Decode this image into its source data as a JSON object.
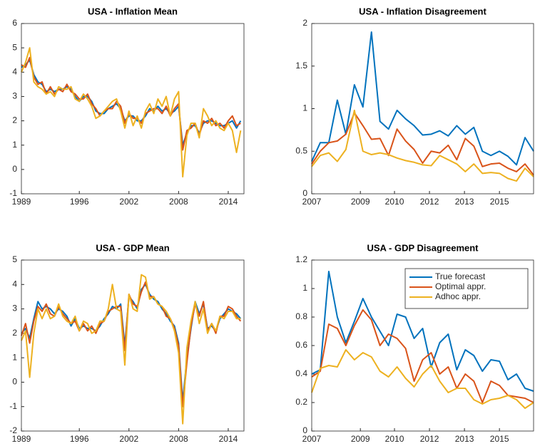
{
  "chart_data": [
    {
      "type": "line",
      "title": "USA - Inflation Mean",
      "x": [
        1989,
        1989.5,
        1990,
        1990.5,
        1991,
        1991.5,
        1992,
        1992.5,
        1993,
        1993.5,
        1994,
        1994.5,
        1995,
        1995.5,
        1996,
        1996.5,
        1997,
        1997.5,
        1998,
        1998.5,
        1999,
        1999.5,
        2000,
        2000.5,
        2001,
        2001.5,
        2002,
        2002.5,
        2003,
        2003.5,
        2004,
        2004.5,
        2005,
        2005.5,
        2006,
        2006.5,
        2007,
        2007.5,
        2008,
        2008.5,
        2009,
        2009.5,
        2010,
        2010.5,
        2011,
        2011.5,
        2012,
        2012.5,
        2013,
        2013.5,
        2014,
        2014.5,
        2015,
        2015.5
      ],
      "series": [
        {
          "color": "#0072BD",
          "values": [
            4.2,
            4.3,
            4.5,
            3.9,
            3.6,
            3.5,
            3.2,
            3.3,
            3.2,
            3.3,
            3.3,
            3.4,
            3.3,
            3.0,
            2.8,
            3.0,
            3.0,
            2.8,
            2.4,
            2.3,
            2.3,
            2.5,
            2.6,
            2.7,
            2.5,
            2.0,
            2.2,
            2.2,
            2.0,
            2.0,
            2.2,
            2.5,
            2.4,
            2.6,
            2.4,
            2.5,
            2.3,
            2.4,
            2.6,
            1.0,
            1.5,
            1.8,
            1.8,
            1.5,
            1.9,
            2.0,
            2.0,
            1.9,
            1.8,
            1.8,
            1.9,
            2.0,
            1.7,
            2.0
          ]
        },
        {
          "color": "#D95319",
          "values": [
            4.3,
            4.2,
            4.6,
            3.8,
            3.5,
            3.6,
            3.1,
            3.4,
            3.1,
            3.3,
            3.2,
            3.5,
            3.2,
            3.1,
            2.9,
            2.9,
            3.1,
            2.7,
            2.5,
            2.2,
            2.4,
            2.5,
            2.5,
            2.8,
            2.6,
            1.9,
            2.3,
            2.1,
            2.1,
            1.9,
            2.3,
            2.4,
            2.5,
            2.5,
            2.3,
            2.6,
            2.2,
            2.5,
            2.7,
            0.8,
            1.6,
            1.7,
            1.9,
            1.4,
            2.0,
            1.9,
            2.1,
            1.8,
            1.9,
            1.7,
            2.0,
            2.2,
            1.8,
            1.9
          ]
        },
        {
          "color": "#EDB120",
          "values": [
            4.0,
            4.4,
            5.0,
            3.6,
            3.4,
            3.3,
            3.1,
            3.2,
            3.0,
            3.4,
            3.3,
            3.3,
            3.4,
            2.9,
            2.8,
            3.1,
            2.9,
            2.6,
            2.1,
            2.2,
            2.4,
            2.6,
            2.8,
            2.9,
            2.4,
            1.7,
            2.4,
            1.8,
            2.2,
            1.7,
            2.4,
            2.7,
            2.3,
            2.9,
            2.6,
            3.0,
            2.2,
            2.9,
            3.2,
            -0.3,
            1.4,
            1.9,
            1.9,
            1.3,
            2.5,
            2.2,
            1.8,
            2.0,
            1.7,
            1.6,
            1.9,
            1.6,
            0.7,
            1.6
          ]
        }
      ],
      "xlim": [
        1989,
        2015.9
      ],
      "ylim": [
        -1,
        6
      ],
      "xticks": [
        1989,
        1996,
        2002,
        2008,
        2014
      ],
      "yticks": [
        -1,
        0,
        1,
        2,
        3,
        4,
        5,
        6
      ]
    },
    {
      "type": "line",
      "title": "USA - Inflation Disagreement",
      "x": [
        0,
        1,
        2,
        3,
        4,
        5,
        6,
        7,
        8,
        9,
        10,
        11,
        12,
        13,
        14,
        15,
        16,
        17,
        18,
        19,
        20,
        21,
        22,
        23,
        24,
        25,
        26
      ],
      "series": [
        {
          "color": "#0072BD",
          "values": [
            0.38,
            0.6,
            0.6,
            1.1,
            0.7,
            1.28,
            1.02,
            1.9,
            0.85,
            0.76,
            0.98,
            0.88,
            0.8,
            0.69,
            0.7,
            0.74,
            0.68,
            0.8,
            0.7,
            0.78,
            0.5,
            0.45,
            0.5,
            0.44,
            0.34,
            0.66,
            0.5
          ]
        },
        {
          "color": "#D95319",
          "values": [
            0.35,
            0.5,
            0.6,
            0.62,
            0.7,
            0.95,
            0.8,
            0.64,
            0.65,
            0.45,
            0.76,
            0.62,
            0.52,
            0.36,
            0.5,
            0.48,
            0.57,
            0.4,
            0.65,
            0.56,
            0.32,
            0.35,
            0.36,
            0.3,
            0.26,
            0.35,
            0.22
          ]
        },
        {
          "color": "#EDB120",
          "values": [
            0.32,
            0.45,
            0.48,
            0.38,
            0.52,
            0.98,
            0.5,
            0.46,
            0.48,
            0.46,
            0.42,
            0.39,
            0.37,
            0.34,
            0.33,
            0.45,
            0.4,
            0.35,
            0.26,
            0.35,
            0.24,
            0.25,
            0.24,
            0.18,
            0.15,
            0.3,
            0.2
          ]
        }
      ],
      "xlim": [
        0,
        26
      ],
      "ylim": [
        0,
        2
      ],
      "xticks": [
        {
          "value": 0,
          "label": "2007"
        },
        {
          "value": 5.7,
          "label": "2009"
        },
        {
          "value": 9.7,
          "label": "2010"
        },
        {
          "value": 13.8,
          "label": "2012"
        },
        {
          "value": 17.9,
          "label": "2013"
        },
        {
          "value": 22,
          "label": "2015"
        }
      ],
      "yticks": [
        0,
        0.5,
        1,
        1.5,
        2
      ]
    },
    {
      "type": "line",
      "title": "USA - GDP Mean",
      "x": [
        1989,
        1989.5,
        1990,
        1990.5,
        1991,
        1991.5,
        1992,
        1992.5,
        1993,
        1993.5,
        1994,
        1994.5,
        1995,
        1995.5,
        1996,
        1996.5,
        1997,
        1997.5,
        1998,
        1998.5,
        1999,
        1999.5,
        2000,
        2000.5,
        2001,
        2001.5,
        2002,
        2002.5,
        2003,
        2003.5,
        2004,
        2004.5,
        2005,
        2005.5,
        2006,
        2006.5,
        2007,
        2007.5,
        2008,
        2008.5,
        2009,
        2009.5,
        2010,
        2010.5,
        2011,
        2011.5,
        2012,
        2012.5,
        2013,
        2013.5,
        2014,
        2014.5,
        2015,
        2015.5
      ],
      "series": [
        {
          "color": "#0072BD",
          "values": [
            2.0,
            2.2,
            1.8,
            2.6,
            3.3,
            3.0,
            3.1,
            3.0,
            2.8,
            3.0,
            2.9,
            2.7,
            2.3,
            2.6,
            2.2,
            2.3,
            2.2,
            2.2,
            2.1,
            2.3,
            2.6,
            2.8,
            3.1,
            3.0,
            3.2,
            1.5,
            3.5,
            3.3,
            3.0,
            3.8,
            4.0,
            3.6,
            3.4,
            3.3,
            3.0,
            2.8,
            2.5,
            2.3,
            1.6,
            -0.8,
            1.0,
            2.2,
            3.3,
            2.8,
            3.2,
            2.2,
            2.3,
            2.1,
            2.6,
            2.8,
            3.0,
            2.9,
            2.8,
            2.6
          ]
        },
        {
          "color": "#D95319",
          "values": [
            1.9,
            2.4,
            1.6,
            2.5,
            3.1,
            2.9,
            3.2,
            2.8,
            2.7,
            3.1,
            2.8,
            2.6,
            2.4,
            2.5,
            2.1,
            2.4,
            2.1,
            2.3,
            2.0,
            2.4,
            2.5,
            2.9,
            3.0,
            3.1,
            3.1,
            1.3,
            3.6,
            3.2,
            3.1,
            3.7,
            4.1,
            3.5,
            3.5,
            3.2,
            3.1,
            2.7,
            2.6,
            2.2,
            1.5,
            -1.0,
            0.8,
            2.3,
            3.2,
            2.7,
            3.3,
            2.1,
            2.4,
            2.0,
            2.7,
            2.7,
            3.1,
            3.0,
            2.7,
            2.5
          ]
        },
        {
          "color": "#EDB120",
          "values": [
            1.7,
            2.1,
            0.2,
            2.0,
            3.0,
            2.6,
            3.0,
            2.6,
            2.7,
            3.2,
            2.7,
            2.5,
            2.4,
            2.7,
            2.1,
            2.5,
            2.4,
            2.0,
            2.1,
            2.5,
            2.5,
            3.0,
            4.0,
            3.0,
            2.9,
            0.7,
            3.6,
            3.0,
            2.9,
            4.4,
            4.3,
            3.4,
            3.5,
            3.2,
            3.1,
            2.9,
            2.6,
            2.1,
            1.2,
            -1.7,
            1.4,
            2.5,
            3.3,
            2.4,
            3.0,
            2.0,
            2.4,
            2.1,
            2.7,
            2.6,
            2.9,
            2.9,
            2.6,
            2.6
          ]
        }
      ],
      "xlim": [
        1989,
        2015.9
      ],
      "ylim": [
        -2,
        5
      ],
      "xticks": [
        1989,
        1996,
        2002,
        2008,
        2014
      ],
      "yticks": [
        -2,
        -1,
        0,
        1,
        2,
        3,
        4,
        5
      ]
    },
    {
      "type": "line",
      "title": "USA - GDP Disagreement",
      "x": [
        0,
        1,
        2,
        3,
        4,
        5,
        6,
        7,
        8,
        9,
        10,
        11,
        12,
        13,
        14,
        15,
        16,
        17,
        18,
        19,
        20,
        21,
        22,
        23,
        24,
        25,
        26
      ],
      "series": [
        {
          "name": "True forecast",
          "color": "#0072BD",
          "values": [
            0.4,
            0.43,
            1.12,
            0.8,
            0.62,
            0.77,
            0.93,
            0.8,
            0.7,
            0.6,
            0.82,
            0.8,
            0.65,
            0.72,
            0.45,
            0.62,
            0.68,
            0.43,
            0.57,
            0.53,
            0.42,
            0.5,
            0.49,
            0.36,
            0.4,
            0.3,
            0.28
          ]
        },
        {
          "name": "Optimal appr.",
          "color": "#D95319",
          "values": [
            0.38,
            0.42,
            0.75,
            0.72,
            0.6,
            0.74,
            0.85,
            0.78,
            0.6,
            0.68,
            0.65,
            0.58,
            0.35,
            0.5,
            0.55,
            0.4,
            0.45,
            0.3,
            0.4,
            0.35,
            0.2,
            0.35,
            0.32,
            0.25,
            0.24,
            0.23,
            0.2
          ]
        },
        {
          "name": "Adhoc appr.",
          "color": "#EDB120",
          "values": [
            0.27,
            0.44,
            0.46,
            0.45,
            0.57,
            0.5,
            0.55,
            0.52,
            0.42,
            0.38,
            0.45,
            0.37,
            0.31,
            0.4,
            0.46,
            0.35,
            0.27,
            0.3,
            0.3,
            0.22,
            0.19,
            0.22,
            0.23,
            0.25,
            0.22,
            0.16,
            0.2
          ]
        }
      ],
      "xlim": [
        0,
        26
      ],
      "ylim": [
        0,
        1.2
      ],
      "xticks": [
        {
          "value": 0,
          "label": "2007"
        },
        {
          "value": 5.7,
          "label": "2009"
        },
        {
          "value": 9.7,
          "label": "2010"
        },
        {
          "value": 13.8,
          "label": "2012"
        },
        {
          "value": 17.9,
          "label": "2013"
        },
        {
          "value": 22,
          "label": "2015"
        }
      ],
      "yticks": [
        0,
        0.2,
        0.4,
        0.6,
        0.8,
        1,
        1.2
      ],
      "legend": "upper right"
    }
  ]
}
